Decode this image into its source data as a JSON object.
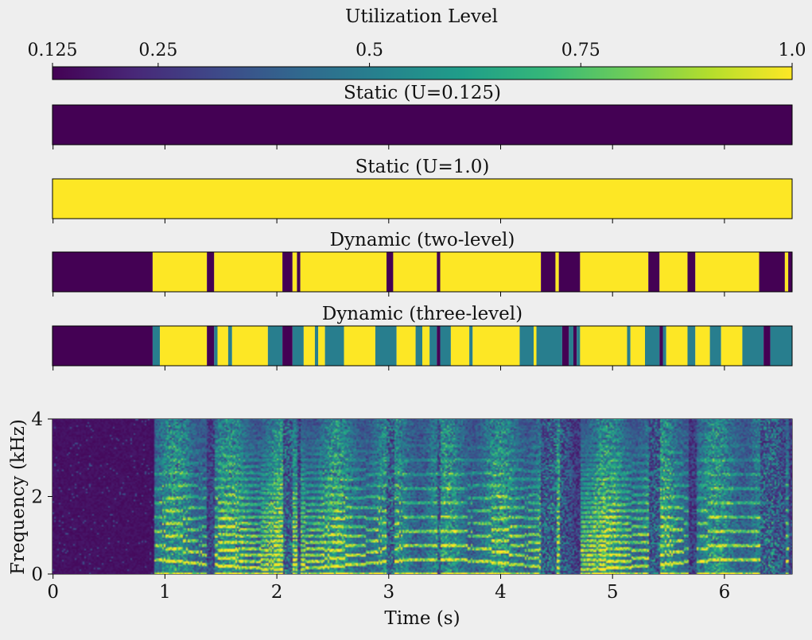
{
  "colorbar": {
    "label": "Utilization Level",
    "ticks": [
      "0.125",
      "0.25",
      "0.5",
      "0.75",
      "1.0"
    ],
    "range": [
      0.125,
      1.0
    ],
    "colormap": "viridis"
  },
  "chart_data": [
    {
      "type": "heatmap",
      "title": "Static (U=0.125)",
      "xlim": [
        0,
        6.605
      ],
      "segments": [
        {
          "start": 0,
          "end": 6.605,
          "value": 0.125
        }
      ]
    },
    {
      "type": "heatmap",
      "title": "Static (U=1.0)",
      "xlim": [
        0,
        6.605
      ],
      "segments": [
        {
          "start": 0,
          "end": 6.605,
          "value": 1.0
        }
      ]
    },
    {
      "type": "heatmap",
      "title": "Dynamic (two-level)",
      "xlim": [
        0,
        6.605
      ],
      "boundaries": [
        0,
        0.89,
        1.375,
        1.44,
        2.05,
        2.14,
        2.18,
        2.21,
        2.98,
        3.04,
        3.43,
        3.46,
        4.36,
        4.49,
        4.52,
        4.71,
        5.32,
        5.42,
        5.67,
        5.74,
        6.31,
        6.54,
        6.57,
        6.605
      ],
      "values": [
        0.125,
        1.0,
        0.125,
        1.0,
        0.125,
        1.0,
        0.125,
        1.0,
        0.125,
        1.0,
        0.125,
        1.0,
        0.125,
        1.0,
        0.125,
        1.0,
        0.125,
        1.0,
        0.125,
        1.0,
        0.125,
        1.0,
        0.125
      ]
    },
    {
      "type": "heatmap",
      "title": "Dynamic (three-level)",
      "xlim": [
        0,
        6.605
      ],
      "boundaries": [
        0,
        0.89,
        0.955,
        1.375,
        1.44,
        1.47,
        1.565,
        1.6,
        1.92,
        2.05,
        2.14,
        2.24,
        2.34,
        2.37,
        2.43,
        2.6,
        2.88,
        3.07,
        3.24,
        3.3,
        3.365,
        3.43,
        3.46,
        3.555,
        3.72,
        3.75,
        4.17,
        4.295,
        4.32,
        4.55,
        4.61,
        4.65,
        4.68,
        4.71,
        5.13,
        5.16,
        5.29,
        5.42,
        5.45,
        5.48,
        5.67,
        5.74,
        5.87,
        5.97,
        6.16,
        6.35,
        6.41,
        6.605
      ],
      "values": [
        0.125,
        0.5,
        1.0,
        0.125,
        0.5,
        1.0,
        0.5,
        1.0,
        0.5,
        0.125,
        0.5,
        1.0,
        0.5,
        1.0,
        0.5,
        1.0,
        0.5,
        1.0,
        0.5,
        1.0,
        0.5,
        0.125,
        0.5,
        1.0,
        0.5,
        1.0,
        0.5,
        1.0,
        0.5,
        0.125,
        0.5,
        0.125,
        0.5,
        1.0,
        0.5,
        1.0,
        0.5,
        0.125,
        0.5,
        1.0,
        0.5,
        1.0,
        0.5,
        1.0,
        0.5,
        0.125,
        0.5
      ]
    },
    {
      "type": "heatmap",
      "subtype": "spectrogram",
      "xlabel": "Time (s)",
      "ylabel": "Frequency (kHz)",
      "xlim": [
        0,
        6.605
      ],
      "ylim": [
        0,
        4
      ],
      "xticks": [
        "0",
        "1",
        "2",
        "3",
        "4",
        "5",
        "6"
      ],
      "yticks": [
        "0",
        "2",
        "4"
      ],
      "colormap": "viridis"
    }
  ]
}
